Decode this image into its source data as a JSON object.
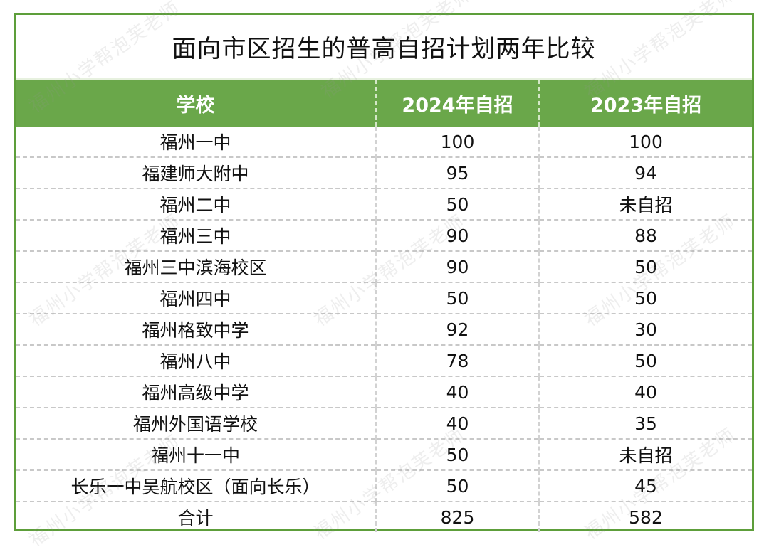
{
  "title": "面向市区招生的普高自招计划两年比较",
  "headers": [
    "学校",
    "2024年自招",
    "2023年自招"
  ],
  "rows": [
    {
      "school": "福州一中",
      "y2024": "100",
      "y2023": "100"
    },
    {
      "school": "福建师大附中",
      "y2024": "95",
      "y2023": "94"
    },
    {
      "school": "福州二中",
      "y2024": "50",
      "y2023": "未自招"
    },
    {
      "school": "福州三中",
      "y2024": "90",
      "y2023": "88"
    },
    {
      "school": "福州三中滨海校区",
      "y2024": "90",
      "y2023": "50"
    },
    {
      "school": "福州四中",
      "y2024": "50",
      "y2023": "50"
    },
    {
      "school": "福州格致中学",
      "y2024": "92",
      "y2023": "30"
    },
    {
      "school": "福州八中",
      "y2024": "78",
      "y2023": "50"
    },
    {
      "school": "福州高级中学",
      "y2024": "40",
      "y2023": "40"
    },
    {
      "school": "福州外国语学校",
      "y2024": "40",
      "y2023": "35"
    },
    {
      "school": "福州十一中",
      "y2024": "50",
      "y2023": "未自招"
    },
    {
      "school": "长乐一中吴航校区（面向长乐）",
      "y2024": "50",
      "y2023": "45"
    },
    {
      "school": "合计",
      "y2024": "825",
      "y2023": "582"
    }
  ],
  "watermark": "福州小学帮泡芙老师",
  "colors": {
    "header_bg": "#6aa74a",
    "border": "#5d9e3a",
    "header_text": "#ffffff"
  }
}
